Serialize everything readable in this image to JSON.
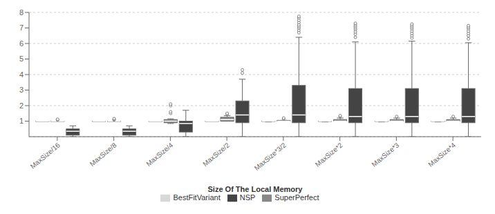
{
  "chart_data": {
    "type": "box",
    "categories": [
      "MaxSize/16",
      "MaxSize/8",
      "MaxSize/4",
      "MaxSize/2",
      "MaxSize*3/2",
      "MaxSize*2",
      "MaxSize*3",
      "MaxSize*4"
    ],
    "xlabel": "Size Of The Local Memory",
    "ylim": [
      0,
      8
    ],
    "yticks": [
      1,
      2,
      3,
      4,
      5,
      6,
      7,
      8
    ],
    "grid": true,
    "legend": "bottom",
    "series": [
      {
        "name": "BestFitVariant",
        "color": "#d8d8d8",
        "boxes": [
          {
            "whislo": 1.0,
            "q1": 1.0,
            "med": 1.0,
            "q3": 1.0,
            "whishi": 1.0,
            "fliers": []
          },
          {
            "whislo": 1.0,
            "q1": 1.0,
            "med": 1.0,
            "q3": 1.0,
            "whishi": 1.0,
            "fliers": []
          },
          {
            "whislo": 1.0,
            "q1": 1.0,
            "med": 1.0,
            "q3": 1.0,
            "whishi": 1.0,
            "fliers": []
          },
          {
            "whislo": 1.0,
            "q1": 1.0,
            "med": 1.0,
            "q3": 1.0,
            "whishi": 1.0,
            "fliers": []
          },
          {
            "whislo": 0.95,
            "q1": 0.98,
            "med": 1.0,
            "q3": 1.0,
            "whishi": 1.0,
            "fliers": []
          },
          {
            "whislo": 0.95,
            "q1": 0.98,
            "med": 1.0,
            "q3": 1.0,
            "whishi": 1.0,
            "fliers": []
          },
          {
            "whislo": 0.95,
            "q1": 0.98,
            "med": 1.0,
            "q3": 1.0,
            "whishi": 1.0,
            "fliers": []
          },
          {
            "whislo": 0.95,
            "q1": 0.98,
            "med": 1.0,
            "q3": 1.0,
            "whishi": 1.0,
            "fliers": []
          }
        ]
      },
      {
        "name": "SuperPerfect",
        "color": "#888888",
        "boxes": [
          {
            "whislo": 1.0,
            "q1": 1.0,
            "med": 1.0,
            "q3": 1.0,
            "whishi": 1.0,
            "fliers": [
              1.08,
              1.12
            ]
          },
          {
            "whislo": 1.0,
            "q1": 1.0,
            "med": 1.0,
            "q3": 1.0,
            "whishi": 1.0,
            "fliers": [
              1.08,
              1.12,
              1.16
            ]
          },
          {
            "whislo": 0.85,
            "q1": 0.9,
            "med": 1.0,
            "q3": 1.1,
            "whishi": 1.15,
            "fliers": [
              1.5,
              1.6,
              2.0,
              2.1
            ]
          },
          {
            "whislo": 1.0,
            "q1": 1.0,
            "med": 1.1,
            "q3": 1.25,
            "whishi": 1.35,
            "fliers": [
              1.45,
              1.5
            ]
          },
          {
            "whislo": 1.0,
            "q1": 1.0,
            "med": 1.0,
            "q3": 1.05,
            "whishi": 1.05,
            "fliers": [
              1.15,
              1.2
            ]
          },
          {
            "whislo": 1.0,
            "q1": 1.0,
            "med": 1.0,
            "q3": 1.1,
            "whishi": 1.2,
            "fliers": [
              1.3,
              1.35
            ]
          },
          {
            "whislo": 1.0,
            "q1": 1.0,
            "med": 1.0,
            "q3": 1.1,
            "whishi": 1.2,
            "fliers": [
              1.3
            ]
          },
          {
            "whislo": 1.0,
            "q1": 1.0,
            "med": 1.0,
            "q3": 1.1,
            "whishi": 1.2,
            "fliers": [
              1.3
            ]
          }
        ]
      },
      {
        "name": "NSP",
        "color": "#444444",
        "boxes": [
          {
            "whislo": 0.0,
            "q1": 0.1,
            "med": 0.35,
            "q3": 0.5,
            "whishi": 0.7,
            "fliers": []
          },
          {
            "whislo": 0.0,
            "q1": 0.1,
            "med": 0.35,
            "q3": 0.5,
            "whishi": 0.7,
            "fliers": []
          },
          {
            "whislo": 0.0,
            "q1": 0.3,
            "med": 0.85,
            "q3": 1.0,
            "whishi": 1.7,
            "fliers": []
          },
          {
            "whislo": 0.0,
            "q1": 0.9,
            "med": 1.4,
            "q3": 2.3,
            "whishi": 3.7,
            "fliers": [
              4.1,
              4.3
            ]
          },
          {
            "whislo": 0.0,
            "q1": 0.9,
            "med": 1.4,
            "q3": 3.3,
            "whishi": 6.4,
            "fliers": [
              6.7,
              6.85,
              7.0,
              7.1,
              7.2,
              7.35,
              7.5,
              7.65,
              7.75
            ]
          },
          {
            "whislo": 0.0,
            "q1": 0.9,
            "med": 1.3,
            "q3": 3.1,
            "whishi": 6.1,
            "fliers": [
              6.4,
              6.6,
              6.75,
              6.9,
              7.0,
              7.1,
              7.2,
              7.3
            ]
          },
          {
            "whislo": 0.0,
            "q1": 0.9,
            "med": 1.3,
            "q3": 3.1,
            "whishi": 6.15,
            "fliers": [
              6.35,
              6.5,
              6.65,
              6.8,
              6.95,
              7.05,
              7.15,
              7.25
            ]
          },
          {
            "whislo": 0.0,
            "q1": 0.9,
            "med": 1.3,
            "q3": 3.1,
            "whishi": 6.05,
            "fliers": [
              6.3,
              6.5,
              6.65,
              6.8,
              6.95,
              7.05,
              7.15
            ]
          }
        ]
      }
    ]
  }
}
